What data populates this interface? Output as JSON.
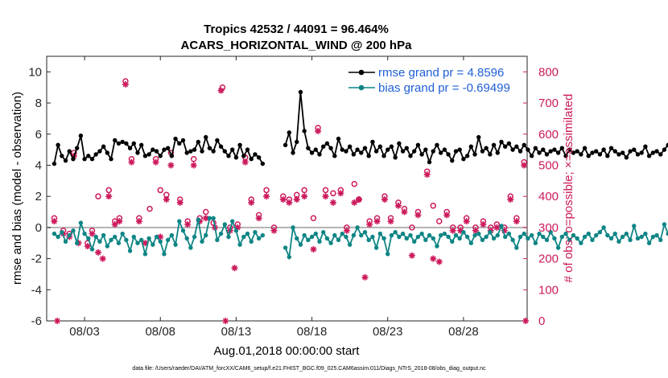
{
  "chart_data": {
    "type": "line",
    "title_line1": "Tropics 42532 / 44091 = 96.464%",
    "title_line2": "ACARS_HORIZONTAL_WIND @ 200 hPa",
    "xlabel": "Aug.01,2018 00:00:00 start",
    "ylabel_left": "rmse and bias (model - observation)",
    "ylabel_right": "# of obs: o=possible; ×=assimilated",
    "footnote": "data file: /Users/raeder/DAI/ATM_forcXX/CAM6_setup/f.e21.FHIST_BGC.f09_025.CAM6assim.011/Diags_NTrS_2018-08/obs_diag_output.nc",
    "xlim": [
      0.5,
      32.2
    ],
    "ylim_left": [
      -6,
      11
    ],
    "ylim_right": [
      0,
      850
    ],
    "x_ticks": [
      3,
      8,
      13,
      18,
      23,
      28
    ],
    "x_tick_labels": [
      "08/03",
      "08/08",
      "08/13",
      "08/18",
      "08/23",
      "08/28"
    ],
    "y_left_ticks": [
      -6,
      -4,
      -2,
      0,
      2,
      4,
      6,
      8,
      10
    ],
    "y_right_ticks": [
      0,
      100,
      200,
      300,
      400,
      500,
      600,
      700,
      800
    ],
    "x_start": 1.0,
    "x_step": 0.25,
    "colors": {
      "rmse": "#000000",
      "bias": "#0f8585",
      "obs": "#cc1a5c",
      "legend_text": "#1f5fd6",
      "zero_line": "#b3b3b3"
    },
    "series": [
      {
        "name": "rmse grand pr = 4.8596",
        "axis": "left",
        "values": [
          4.1,
          5.3,
          4.6,
          4.3,
          4.9,
          4.4,
          5.1,
          5.9,
          4.4,
          4.6,
          4.4,
          4.7,
          4.9,
          5.2,
          4.8,
          4.4,
          5.6,
          5.4,
          5.5,
          5.4,
          5.1,
          5.4,
          4.8,
          5.3,
          4.6,
          4.7,
          5.0,
          4.9,
          4.6,
          5.0,
          5.1,
          4.6,
          5.7,
          5.4,
          5.6,
          4.8,
          4.9,
          5.0,
          5.5,
          4.9,
          5.8,
          5.1,
          4.9,
          5.6,
          5.2,
          4.9,
          4.6,
          5.0,
          4.5,
          5.3,
          4.6,
          5.0,
          4.4,
          4.7,
          4.5,
          4.1,
          null,
          null,
          null,
          null,
          null,
          5.3,
          6.1,
          4.8,
          5.5,
          8.7,
          6.2,
          5.1,
          4.8,
          5.0,
          4.7,
          5.2,
          5.4,
          5.1,
          4.6,
          5.7,
          5.0,
          4.9,
          5.2,
          4.7,
          5.0,
          4.8,
          5.1,
          4.6,
          5.5,
          4.9,
          5.2,
          4.6,
          5.0,
          5.2,
          4.5,
          5.4,
          4.9,
          5.1,
          4.6,
          4.9,
          5.3,
          4.7,
          5.0,
          4.2,
          4.9,
          5.3,
          4.8,
          5.0,
          4.7,
          4.3,
          4.9,
          5.0,
          4.4,
          4.6,
          5.2,
          4.7,
          5.8,
          4.9,
          5.1,
          4.7,
          5.3,
          4.8,
          5.5,
          5.2,
          5.4,
          5.0,
          5.2,
          4.9,
          5.3,
          5.0,
          4.6,
          5.1,
          4.8,
          5.0,
          4.7,
          4.9,
          5.0,
          4.8,
          5.1,
          4.6,
          5.0,
          4.8,
          4.9,
          4.7,
          5.1,
          4.6,
          4.8,
          4.9,
          4.7,
          5.0,
          4.6,
          5.1,
          4.9,
          4.7,
          4.8,
          4.5,
          4.9,
          5.0,
          4.7,
          4.8,
          5.2,
          4.6,
          4.8,
          4.9,
          4.7,
          5.0,
          5.3,
          4.4,
          4.3
        ]
      },
      {
        "name": "bias grand pr = -0.69499",
        "axis": "left",
        "values": [
          -0.4,
          -0.6,
          -0.3,
          -0.9,
          -0.5,
          -0.2,
          -1.0,
          0.3,
          -0.4,
          -0.7,
          -1.4,
          -0.6,
          -0.9,
          -0.5,
          -1.2,
          -0.8,
          -0.6,
          -1.0,
          -0.4,
          -0.8,
          -1.5,
          -0.6,
          -1.0,
          -0.8,
          -1.7,
          -0.7,
          -1.1,
          -0.6,
          -0.9,
          -1.7,
          -0.8,
          -0.5,
          -1.1,
          0.4,
          -0.2,
          -0.7,
          -1.3,
          -0.6,
          0.5,
          -0.9,
          -0.5,
          0.6,
          0.6,
          -0.8,
          -0.4,
          0.2,
          -0.6,
          0.4,
          -0.2,
          -1.1,
          -0.6,
          -0.4,
          -0.9,
          -0.3,
          -0.7,
          -0.5,
          null,
          null,
          null,
          null,
          null,
          -1.3,
          -1.9,
          0.0,
          -0.7,
          -1.1,
          -0.5,
          -0.8,
          -0.6,
          -0.4,
          -0.9,
          -0.3,
          -0.7,
          -1.0,
          -0.5,
          -0.8,
          -0.4,
          -0.6,
          -1.1,
          -0.5,
          0.0,
          -0.5,
          -0.3,
          -0.8,
          -0.6,
          -1.3,
          -0.4,
          -0.7,
          -1.7,
          -0.5,
          -0.3,
          -0.6,
          -0.4,
          -0.7,
          -0.5,
          -0.9,
          -0.6,
          -0.4,
          -0.8,
          -0.5,
          -0.7,
          -1.2,
          -0.5,
          -0.4,
          -0.6,
          -0.9,
          -0.5,
          -0.7,
          -0.3,
          -0.6,
          -1.0,
          -0.5,
          -0.4,
          -0.8,
          -0.6,
          -0.3,
          -0.7,
          -0.5,
          0.1,
          -0.6,
          -0.4,
          -0.8,
          -1.3,
          -0.6,
          -0.4,
          -0.7,
          -0.5,
          -1.0,
          -0.4,
          -0.6,
          -0.8,
          -0.3,
          -0.7,
          -1.3,
          -0.6,
          -0.4,
          -0.8,
          -0.5,
          -0.7,
          -1.0,
          -0.6,
          -0.4,
          -0.8,
          -0.5,
          -0.3,
          0.0,
          -0.5,
          -0.7,
          -0.4,
          -0.9,
          -0.6,
          -0.4,
          -0.8,
          0.1,
          -0.7,
          -0.6,
          -0.4,
          -1.0,
          -0.6,
          -0.5,
          -0.8,
          0.2,
          -0.4,
          -0.6,
          -0.7,
          -0.3
        ]
      },
      {
        "name": "possible obs",
        "axis": "right",
        "points": [
          [
            1.0,
            330
          ],
          [
            1.6,
            290
          ],
          [
            2.0,
            280
          ],
          [
            2.3,
            540
          ],
          [
            3.2,
            250
          ],
          [
            3.5,
            290
          ],
          [
            3.9,
            400
          ],
          [
            4.6,
            420
          ],
          [
            5.0,
            320
          ],
          [
            5.3,
            330
          ],
          [
            5.7,
            770
          ],
          [
            6.1,
            520
          ],
          [
            6.6,
            330
          ],
          [
            7.3,
            360
          ],
          [
            7.7,
            520
          ],
          [
            8.0,
            420
          ],
          [
            8.4,
            405
          ],
          [
            8.7,
            540
          ],
          [
            9.3,
            390
          ],
          [
            9.8,
            320
          ],
          [
            10.2,
            520
          ],
          [
            10.6,
            330
          ],
          [
            11.0,
            350
          ],
          [
            11.5,
            315
          ],
          [
            12.1,
            750
          ],
          [
            12.6,
            300
          ],
          [
            13.1,
            310
          ],
          [
            13.6,
            525
          ],
          [
            14.0,
            390
          ],
          [
            14.5,
            340
          ],
          [
            15.0,
            420
          ],
          [
            15.5,
            300
          ],
          [
            16.1,
            400
          ],
          [
            16.5,
            390
          ],
          [
            17.0,
            405
          ],
          [
            17.5,
            420
          ],
          [
            18.1,
            330
          ],
          [
            18.4,
            620
          ],
          [
            18.9,
            420
          ],
          [
            19.4,
            410
          ],
          [
            19.9,
            420
          ],
          [
            20.3,
            300
          ],
          [
            20.8,
            440
          ],
          [
            21.1,
            390
          ],
          [
            21.8,
            320
          ],
          [
            22.3,
            330
          ],
          [
            22.8,
            400
          ],
          [
            23.2,
            330
          ],
          [
            23.7,
            380
          ],
          [
            24.1,
            360
          ],
          [
            24.6,
            300
          ],
          [
            25.0,
            350
          ],
          [
            25.6,
            480
          ],
          [
            26.0,
            370
          ],
          [
            26.4,
            320
          ],
          [
            26.9,
            350
          ],
          [
            27.3,
            300
          ],
          [
            27.8,
            300
          ],
          [
            28.2,
            330
          ],
          [
            28.8,
            300
          ],
          [
            29.3,
            320
          ],
          [
            29.8,
            300
          ],
          [
            30.2,
            310
          ],
          [
            30.7,
            300
          ],
          [
            31.1,
            400
          ],
          [
            31.5,
            330
          ],
          [
            32.0,
            510
          ]
        ]
      },
      {
        "name": "assimilated obs",
        "axis": "right",
        "points": [
          [
            1.0,
            320
          ],
          [
            1.2,
            0
          ],
          [
            1.6,
            280
          ],
          [
            2.0,
            270
          ],
          [
            2.3,
            530
          ],
          [
            2.6,
            250
          ],
          [
            3.2,
            240
          ],
          [
            3.5,
            280
          ],
          [
            3.9,
            220
          ],
          [
            4.2,
            200
          ],
          [
            4.6,
            400
          ],
          [
            5.0,
            310
          ],
          [
            5.3,
            320
          ],
          [
            5.7,
            760
          ],
          [
            6.1,
            510
          ],
          [
            6.6,
            320
          ],
          [
            7.0,
            250
          ],
          [
            7.7,
            510
          ],
          [
            8.0,
            270
          ],
          [
            8.4,
            390
          ],
          [
            8.7,
            500
          ],
          [
            9.3,
            380
          ],
          [
            9.8,
            310
          ],
          [
            10.2,
            500
          ],
          [
            10.6,
            320
          ],
          [
            11.0,
            330
          ],
          [
            11.6,
            300
          ],
          [
            12.0,
            740
          ],
          [
            12.3,
            0
          ],
          [
            12.6,
            290
          ],
          [
            12.9,
            170
          ],
          [
            13.1,
            300
          ],
          [
            13.6,
            510
          ],
          [
            14.0,
            380
          ],
          [
            14.5,
            330
          ],
          [
            15.0,
            400
          ],
          [
            15.5,
            290
          ],
          [
            16.1,
            390
          ],
          [
            16.5,
            380
          ],
          [
            17.0,
            390
          ],
          [
            17.5,
            400
          ],
          [
            18.1,
            230
          ],
          [
            18.4,
            610
          ],
          [
            18.9,
            400
          ],
          [
            19.4,
            380
          ],
          [
            19.9,
            410
          ],
          [
            20.3,
            290
          ],
          [
            20.8,
            380
          ],
          [
            21.1,
            390
          ],
          [
            21.5,
            140
          ],
          [
            21.8,
            310
          ],
          [
            22.3,
            320
          ],
          [
            22.8,
            390
          ],
          [
            23.2,
            320
          ],
          [
            23.7,
            370
          ],
          [
            24.1,
            350
          ],
          [
            24.6,
            210
          ],
          [
            25.0,
            340
          ],
          [
            25.6,
            470
          ],
          [
            26.0,
            200
          ],
          [
            26.4,
            190
          ],
          [
            26.9,
            340
          ],
          [
            27.3,
            290
          ],
          [
            27.8,
            290
          ],
          [
            28.2,
            320
          ],
          [
            28.8,
            290
          ],
          [
            29.3,
            310
          ],
          [
            29.8,
            290
          ],
          [
            30.2,
            300
          ],
          [
            30.7,
            290
          ],
          [
            31.1,
            390
          ],
          [
            31.5,
            320
          ],
          [
            32.0,
            500
          ],
          [
            32.1,
            0
          ]
        ]
      }
    ],
    "rmse_label": "rmse grand pr = 4.8596",
    "bias_label": "bias grand pr = -0.69499"
  }
}
